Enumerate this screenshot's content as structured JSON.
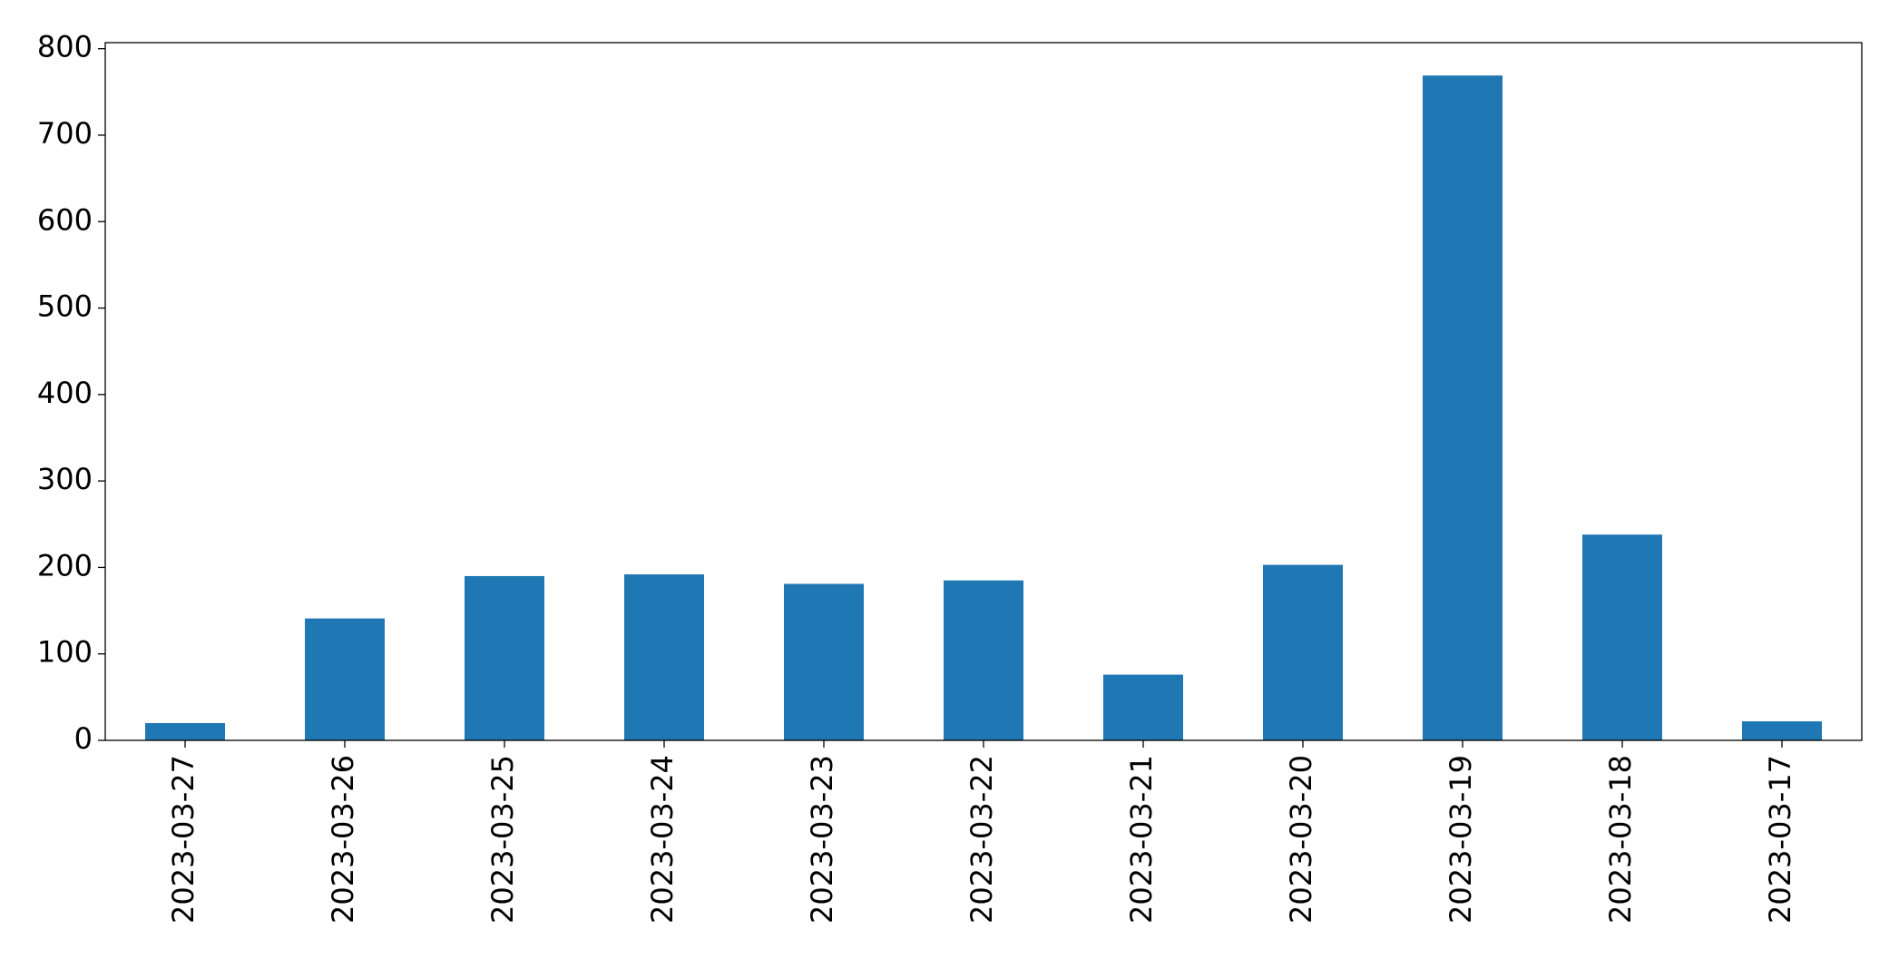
{
  "chart_data": {
    "type": "bar",
    "categories": [
      "2023-03-27",
      "2023-03-26",
      "2023-03-25",
      "2023-03-24",
      "2023-03-23",
      "2023-03-22",
      "2023-03-21",
      "2023-03-20",
      "2023-03-19",
      "2023-03-18",
      "2023-03-17"
    ],
    "values": [
      20,
      141,
      190,
      192,
      181,
      185,
      76,
      203,
      769,
      238,
      22
    ],
    "color": "#1f77b4",
    "ylim": [
      0,
      807
    ],
    "yticks": [
      0,
      100,
      200,
      300,
      400,
      500,
      600,
      700,
      800
    ],
    "grid": false
  }
}
